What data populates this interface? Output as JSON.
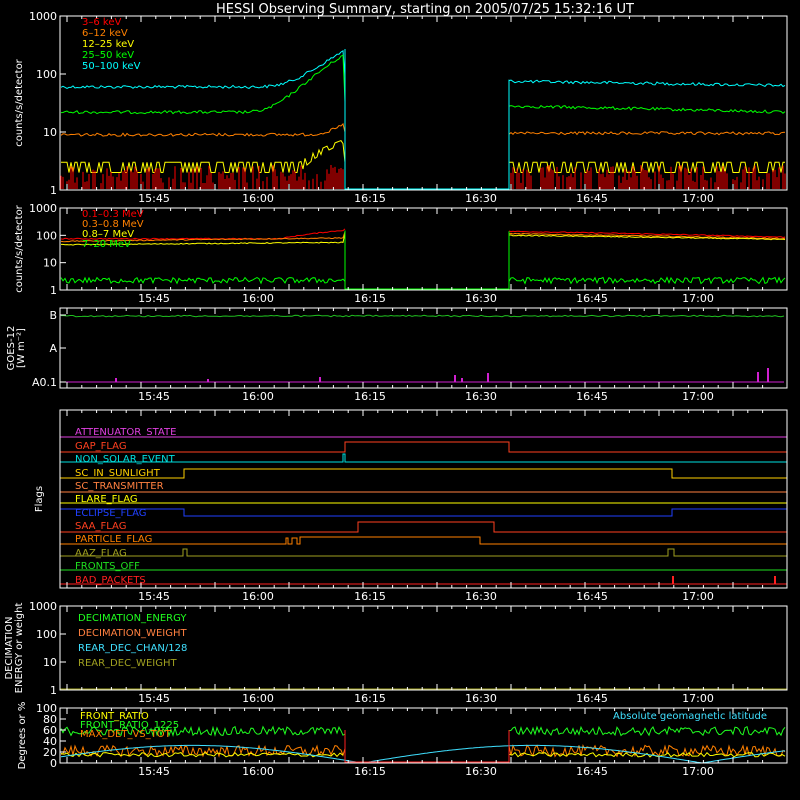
{
  "title": "HESSI Observing Summary, starting on 2005/07/25 15:32:16 UT",
  "time_ticks": [
    "15:45",
    "16:00",
    "16:15",
    "16:30",
    "16:45",
    "17:00"
  ],
  "chart_data": [
    {
      "type": "line",
      "name": "low_energy",
      "ylabel": "counts/s/detector",
      "yscale": "log",
      "ylim": [
        1,
        1000
      ],
      "yticks": [
        "1",
        "10",
        "100",
        "1000"
      ],
      "series": [
        {
          "name": "3–6 keV",
          "color": "#ff0000"
        },
        {
          "name": "6–12 keV",
          "color": "#ff8000"
        },
        {
          "name": "12–25 keV",
          "color": "#ffff00"
        },
        {
          "name": "25–50 keV",
          "color": "#00ff00"
        },
        {
          "name": "50–100 keV",
          "color": "#00ffff"
        }
      ]
    },
    {
      "type": "line",
      "name": "high_energy",
      "ylabel": "counts/s/detector",
      "yscale": "log",
      "ylim": [
        1,
        1000
      ],
      "yticks": [
        "1",
        "10",
        "100",
        "1000"
      ],
      "series": [
        {
          "name": "0.1–0.3 MeV",
          "color": "#ff0000"
        },
        {
          "name": "0.3–0.8 MeV",
          "color": "#ff8000"
        },
        {
          "name": "0.8–7 MeV",
          "color": "#ffff00"
        },
        {
          "name": "7–20 MeV",
          "color": "#00ff00"
        }
      ]
    },
    {
      "type": "line",
      "name": "goes",
      "ylabel": "GOES-12",
      "ylabel2": "[W m⁻²]",
      "yticks": [
        "A0.1",
        "A",
        "B"
      ]
    },
    {
      "type": "line",
      "name": "flags",
      "ylabel": "Flags",
      "series": [
        {
          "name": "ATTENUATOR_STATE",
          "color": "#e040e0"
        },
        {
          "name": "GAP_FLAG",
          "color": "#ff4020"
        },
        {
          "name": "NON_SOLAR_EVENT",
          "color": "#00e0e0"
        },
        {
          "name": "SC_IN_SUNLIGHT",
          "color": "#ffd000"
        },
        {
          "name": "SC_TRANSMITTER",
          "color": "#ff8040"
        },
        {
          "name": "FLARE_FLAG",
          "color": "#ffff00"
        },
        {
          "name": "ECLIPSE_FLAG",
          "color": "#2040ff"
        },
        {
          "name": "SAA_FLAG",
          "color": "#ff4020"
        },
        {
          "name": "PARTICLE_FLAG",
          "color": "#ff8000"
        },
        {
          "name": "AAZ_FLAG",
          "color": "#a0a020"
        },
        {
          "name": "FRONTS_OFF",
          "color": "#20e020"
        },
        {
          "name": "BAD_PACKETS",
          "color": "#ff2020"
        }
      ]
    },
    {
      "type": "line",
      "name": "decimation",
      "ylabel": "DECIMATION",
      "ylabel2": "ENERGY or weight",
      "yticks": [
        "1",
        "10",
        "100",
        "1000"
      ],
      "series": [
        {
          "name": "DECIMATION_ENERGY",
          "color": "#20ff20"
        },
        {
          "name": "DECIMATION_WEIGHT",
          "color": "#ff8040"
        },
        {
          "name": "REAR_DEC_CHAN/128",
          "color": "#40e0ff"
        },
        {
          "name": "REAR_DEC_WEIGHT",
          "color": "#a0a020"
        }
      ]
    },
    {
      "type": "line",
      "name": "ratios",
      "ylabel": "Degrees or %",
      "ylim": [
        0,
        100
      ],
      "yticks": [
        "0",
        "20",
        "40",
        "60",
        "80",
        "100"
      ],
      "series": [
        {
          "name": "FRONT_RATIO",
          "color": "#ffff00"
        },
        {
          "name": "FRONT_RATIO_1225",
          "color": "#20ff20"
        },
        {
          "name": "MAX_DET_VS_TOT",
          "color": "#ff8000"
        },
        {
          "name": "Absolute geomagnetic latitude",
          "color": "#40e0ff"
        }
      ]
    }
  ]
}
